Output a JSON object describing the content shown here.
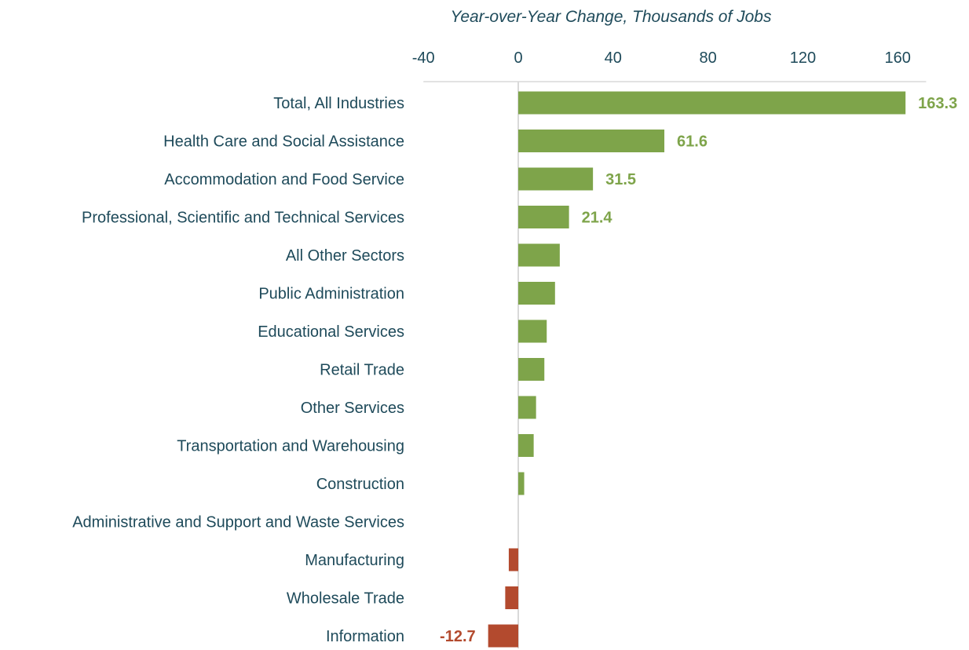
{
  "chart_data": {
    "type": "bar",
    "orientation": "horizontal",
    "title": "",
    "xlabel": "Year-over-Year Change, Thousands of Jobs",
    "ylabel": "",
    "xlim": [
      -40,
      170
    ],
    "xticks": [
      -40,
      0,
      40,
      80,
      120,
      160
    ],
    "tick_labels": [
      "-40",
      "0",
      "40",
      "80",
      "120",
      "160"
    ],
    "categories": [
      "Total, All Industries",
      "Health Care and Social Assistance",
      "Accommodation and Food Service",
      "Professional, Scientific and Technical Services",
      "All Other Sectors",
      "Public Administration",
      "Educational Services",
      "Retail Trade",
      "Other Services",
      "Transportation and Warehousing",
      "Construction",
      "Administrative and Support and Waste Services",
      "Manufacturing",
      "Wholesale Trade",
      "Information"
    ],
    "values": [
      163.3,
      61.6,
      31.5,
      21.4,
      17.5,
      15.5,
      12.0,
      11.0,
      7.5,
      6.5,
      2.5,
      0,
      -4.0,
      -5.5,
      -12.7
    ],
    "data_labels": [
      "163.3",
      "61.6",
      "31.5",
      "21.4",
      "",
      "",
      "",
      "",
      "",
      "",
      "",
      "",
      "",
      "",
      "-12.7"
    ],
    "colors": {
      "positive": "#7ea44a",
      "negative": "#b34a2e",
      "text": "#1e4a5a",
      "zero_line": "#d9d9d9",
      "top_axis": "#d9d9d9"
    },
    "grid": false,
    "legend": "none",
    "axis_position": "top"
  }
}
